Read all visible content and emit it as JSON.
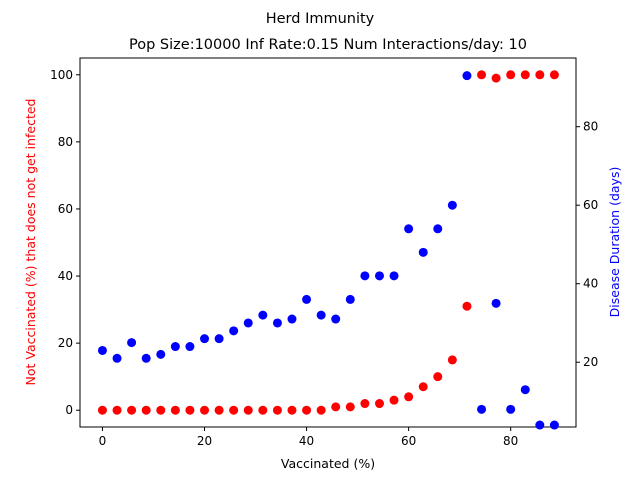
{
  "chart_data": {
    "type": "scatter",
    "title": "Herd Immunity",
    "subtitle": "Pop Size:10000 Inf Rate:0.15 Num Interactions/day: 10",
    "xlabel": "Vaccinated (%)",
    "ylabel_left": "Not Vaccinated (%) that does not get infected",
    "ylabel_right": "Disease Duration (days)",
    "xlim": [
      -4.4,
      92.8
    ],
    "ylim_left": [
      -5,
      105
    ],
    "ylim_right": [
      3.5,
      97.5
    ],
    "x_ticks": [
      0,
      20,
      40,
      60,
      80
    ],
    "y_left_ticks": [
      0,
      20,
      40,
      60,
      80,
      100
    ],
    "y_right_ticks": [
      20,
      40,
      60,
      80
    ],
    "grid": false,
    "series": [
      {
        "axis": "left",
        "color": "#ff0000",
        "x": [
          0,
          2.86,
          5.71,
          8.57,
          11.43,
          14.29,
          17.14,
          20,
          22.86,
          25.71,
          28.57,
          31.43,
          34.29,
          37.14,
          40,
          42.86,
          45.71,
          48.57,
          51.43,
          54.29,
          57.14,
          60,
          62.86,
          65.71,
          68.57,
          71.43,
          74.29,
          77.14,
          80,
          82.86,
          85.71,
          88.57
        ],
        "y": [
          0,
          0,
          0,
          0,
          0,
          0,
          0,
          0,
          0,
          0,
          0,
          0,
          0,
          0,
          0,
          0,
          1,
          1,
          2,
          2,
          3,
          4,
          7,
          10,
          15,
          31,
          100,
          99,
          100,
          100,
          100,
          100
        ]
      },
      {
        "axis": "right",
        "color": "#0000ff",
        "x": [
          0,
          2.86,
          5.71,
          8.57,
          11.43,
          14.29,
          17.14,
          20,
          22.86,
          25.71,
          28.57,
          31.43,
          34.29,
          37.14,
          40,
          42.86,
          45.71,
          48.57,
          51.43,
          54.29,
          57.14,
          60,
          62.86,
          65.71,
          68.57,
          71.43,
          74.29,
          77.14,
          80,
          82.86,
          85.71,
          88.57
        ],
        "y": [
          23,
          21,
          25,
          21,
          22,
          24,
          24,
          26,
          26,
          28,
          30,
          32,
          30,
          31,
          36,
          32,
          31,
          36,
          42,
          42,
          42,
          54,
          48,
          54,
          60,
          93,
          8,
          35,
          8,
          13,
          4,
          4
        ]
      }
    ]
  }
}
